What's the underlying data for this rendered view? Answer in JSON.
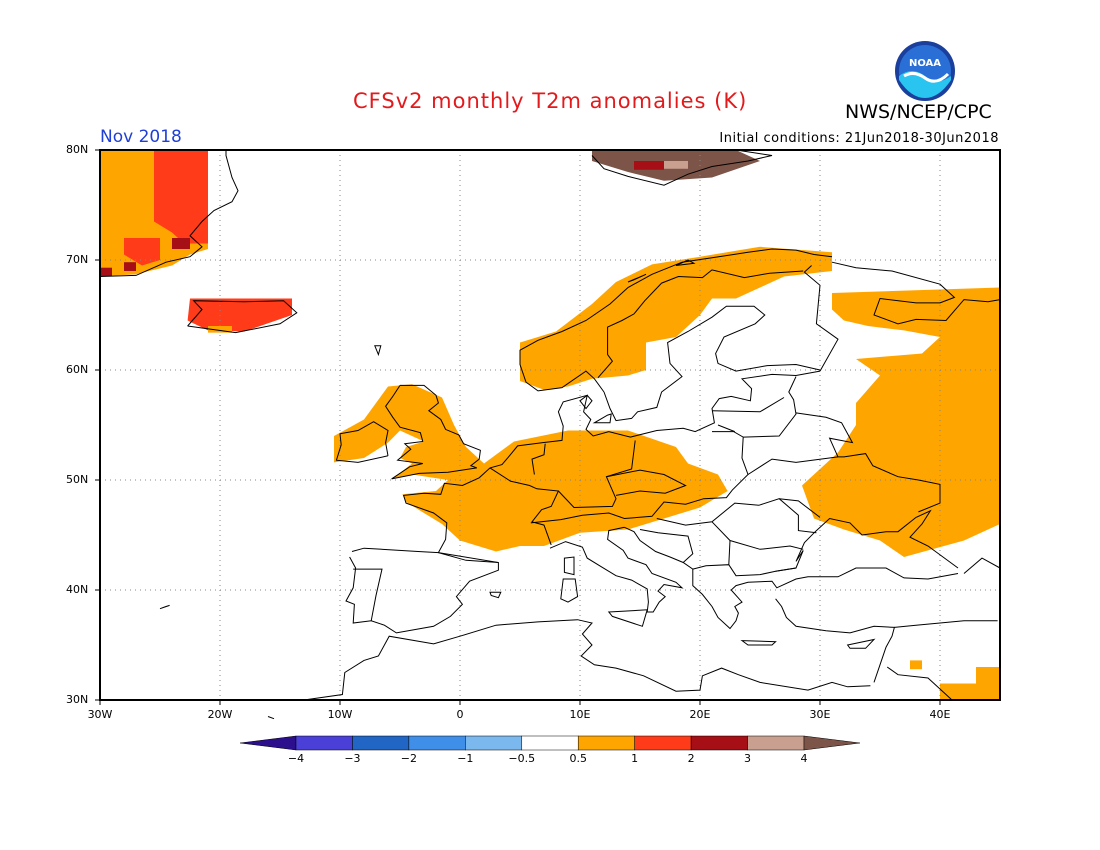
{
  "header": {
    "title": "CFSv2 monthly T2m anomalies (K)",
    "org": "NWS/NCEP/CPC",
    "month": "Nov 2018",
    "initial_conditions": "Initial conditions: 21Jun2018-30Jun2018",
    "logo_text": "NOAA"
  },
  "map": {
    "lon_range": [
      -30,
      45
    ],
    "lat_range": [
      30,
      80
    ],
    "lat_labels": [
      "80N",
      "70N",
      "60N",
      "50N",
      "40N",
      "30N"
    ],
    "lon_labels": [
      "30W",
      "20W",
      "10W",
      "0",
      "10E",
      "20E",
      "30E",
      "40E"
    ],
    "gridlines": true,
    "anomaly_regions": [
      {
        "level": "1",
        "color": "#ffa500",
        "desc": "Greenland coast",
        "lon": [
          -30,
          -21
        ],
        "lat": [
          68,
          80
        ]
      },
      {
        "level": "2",
        "color": "#ff3b1a",
        "desc": "East Greenland",
        "lon": [
          -25,
          -21
        ],
        "lat": [
          70,
          80
        ]
      },
      {
        "level": "3",
        "color": "#a50f15",
        "desc": "East Greenland patches",
        "lon": [
          -24,
          -22
        ],
        "lat": [
          71,
          73
        ]
      },
      {
        "level": "2",
        "color": "#ff3b1a",
        "desc": "Iceland",
        "lon": [
          -22,
          -14
        ],
        "lat": [
          63.5,
          66.5
        ]
      },
      {
        "level": "1",
        "color": "#ffa500",
        "desc": "Scandinavia",
        "lon": [
          4.5,
          31
        ],
        "lat": [
          59,
          71
        ]
      },
      {
        "level": "1",
        "color": "#ffa500",
        "desc": "British Isles & W Europe",
        "lon": [
          -10,
          22
        ],
        "lat": [
          44,
          58
        ]
      },
      {
        "level": "1",
        "color": "#ffa500",
        "desc": "Eastern Europe / Russia",
        "lon": [
          30,
          45
        ],
        "lat": [
          42,
          67
        ]
      },
      {
        "level": "4",
        "color": "#7d5548",
        "desc": "Svalbard",
        "lon": [
          10,
          25
        ],
        "lat": [
          77,
          80
        ]
      },
      {
        "level": "1",
        "color": "#ffa500",
        "desc": "Middle East corner",
        "lon": [
          40,
          45
        ],
        "lat": [
          30,
          33
        ]
      }
    ]
  },
  "colorbar": {
    "labels": [
      "-4",
      "-3",
      "-2",
      "-1",
      "-0.5",
      "0.5",
      "1",
      "2",
      "3",
      "4"
    ],
    "colors": [
      "#2b0f8c",
      "#4a3fd6",
      "#2166c5",
      "#3f8fe8",
      "#7bb8ee",
      "#ffffff",
      "#ffa500",
      "#ff3b1a",
      "#a50f15",
      "#c9a090",
      "#7d5548"
    ]
  }
}
